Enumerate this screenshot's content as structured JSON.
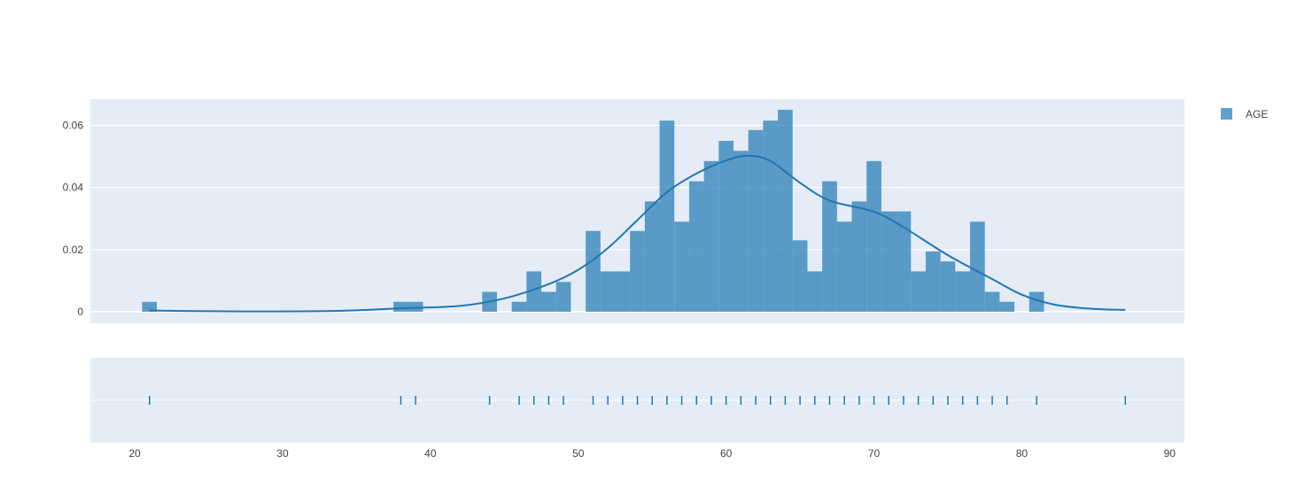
{
  "chart_data": {
    "type": "bar",
    "title": "",
    "xlabel": "",
    "ylabel": "",
    "ylim": [
      0,
      0.068
    ],
    "yticks": [
      0,
      0.02,
      0.04,
      0.06
    ],
    "ytick_labels": [
      "0",
      "0.02",
      "0.04",
      "0.06"
    ],
    "xlim": [
      17,
      91
    ],
    "xticks": [
      20,
      30,
      40,
      50,
      60,
      70,
      80,
      90
    ],
    "xtick_labels": [
      "20",
      "30",
      "40",
      "50",
      "60",
      "70",
      "80",
      "90"
    ],
    "grid": true,
    "legend_position": "top-right",
    "colors": {
      "bars": "#1f77b4",
      "plot_bg": "#e5ecf6",
      "grid": "#ffffff"
    },
    "series": [
      {
        "name": "AGE",
        "kind": "histogram",
        "bin_width": 1,
        "bins": [
          [
            21,
            0.0032
          ],
          [
            38,
            0.0032
          ],
          [
            39,
            0.0032
          ],
          [
            44,
            0.0064
          ],
          [
            46,
            0.0032
          ],
          [
            47,
            0.013
          ],
          [
            48,
            0.0064
          ],
          [
            49,
            0.0096
          ],
          [
            51,
            0.026
          ],
          [
            52,
            0.013
          ],
          [
            53,
            0.013
          ],
          [
            54,
            0.026
          ],
          [
            55,
            0.0355
          ],
          [
            56,
            0.0615
          ],
          [
            57,
            0.029
          ],
          [
            58,
            0.042
          ],
          [
            59,
            0.0485
          ],
          [
            60,
            0.055
          ],
          [
            61,
            0.0518
          ],
          [
            62,
            0.0585
          ],
          [
            63,
            0.0615
          ],
          [
            64,
            0.065
          ],
          [
            65,
            0.023
          ],
          [
            66,
            0.013
          ],
          [
            67,
            0.042
          ],
          [
            68,
            0.029
          ],
          [
            69,
            0.0355
          ],
          [
            70,
            0.0485
          ],
          [
            71,
            0.0323
          ],
          [
            72,
            0.0323
          ],
          [
            73,
            0.013
          ],
          [
            74,
            0.0194
          ],
          [
            75,
            0.0162
          ],
          [
            76,
            0.013
          ],
          [
            77,
            0.029
          ],
          [
            78,
            0.0064
          ],
          [
            79,
            0.0032
          ],
          [
            81,
            0.0064
          ]
        ]
      },
      {
        "kind": "kde",
        "x": [
          21,
          24,
          29,
          34,
          38,
          42,
          45,
          48,
          50,
          52,
          54,
          56,
          58,
          60,
          61.5,
          63,
          65,
          67,
          70,
          72,
          75,
          78,
          80,
          82,
          84,
          85.5,
          87
        ],
        "y": [
          0.0004,
          0.0002,
          0.0001,
          0.0003,
          0.0011,
          0.0019,
          0.0043,
          0.0089,
          0.0135,
          0.0205,
          0.0295,
          0.0385,
          0.0445,
          0.0487,
          0.0502,
          0.0485,
          0.0415,
          0.0358,
          0.0322,
          0.0272,
          0.0182,
          0.0105,
          0.0055,
          0.0025,
          0.0012,
          0.0008,
          0.0006
        ]
      },
      {
        "kind": "rug",
        "values": [
          21,
          38,
          39,
          44,
          46,
          47,
          48,
          49,
          51,
          52,
          53,
          54,
          55,
          56,
          57,
          58,
          59,
          60,
          61,
          62,
          63,
          64,
          65,
          66,
          67,
          68,
          69,
          70,
          71,
          72,
          73,
          74,
          75,
          76,
          77,
          78,
          79,
          81,
          87
        ]
      }
    ]
  }
}
